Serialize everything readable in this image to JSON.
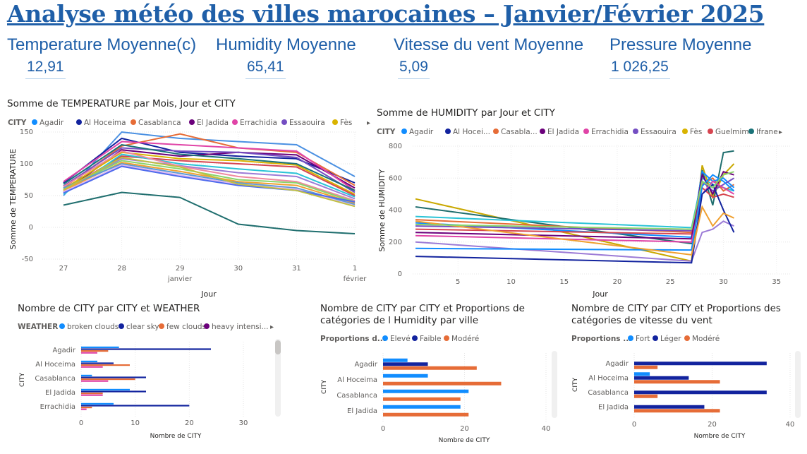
{
  "title": "Analyse météo des villes marocaines – Janvier/Février 2025",
  "kpis": [
    {
      "label": "Temperature Moyenne(c)",
      "value": "12,91"
    },
    {
      "label": "Humidity Moyenne",
      "value": "65,41"
    },
    {
      "label": "Vitesse du vent Moyenne",
      "value": "5,09"
    },
    {
      "label": "Pressure Moyenne",
      "value": "1 026,25"
    }
  ],
  "temp_chart": {
    "title": "Somme de TEMPERATURE par Mois, Jour et CITY",
    "legend_title": "CITY",
    "legend_items": [
      "Agadir",
      "Al Hoceima",
      "Casablanca",
      "El Jadida",
      "Errachidia",
      "Essaouira",
      "Fès"
    ],
    "ylabel": "Somme de TEMPERATURE",
    "xlabel": "Jour",
    "y_ticks": [
      "150",
      "100",
      "50",
      "0",
      "-50"
    ],
    "x_ticks": [
      "27",
      "28",
      "29",
      "30",
      "31",
      "1"
    ],
    "month_labels": [
      "janvier",
      "février"
    ]
  },
  "hum_chart": {
    "title": "Somme de HUMIDITY par Jour et CITY",
    "legend_title": "CITY",
    "legend_items": [
      "Agadir",
      "Al Hocei...",
      "Casabla...",
      "El Jadida",
      "Errachidia",
      "Essaouira",
      "Fès",
      "Guelmim",
      "Ifrane"
    ],
    "ylabel": "Somme de HUMIDITY",
    "xlabel": "Jour",
    "y_ticks": [
      "800",
      "600",
      "400",
      "200",
      "0"
    ],
    "x_ticks": [
      "5",
      "10",
      "15",
      "20",
      "25",
      "30",
      "35"
    ]
  },
  "weather_chart": {
    "title": "Nombre de CITY par CITY et WEATHER",
    "legend_title": "WEATHER",
    "legend_items": [
      "broken clouds",
      "clear sky",
      "few clouds",
      "heavy intensi..."
    ],
    "ylabel": "CITY",
    "xlabel": "Nombre de CITY",
    "x_ticks": [
      "0",
      "10",
      "20",
      "30"
    ],
    "categories": [
      "Agadir",
      "Al Hoceima",
      "Casablanca",
      "El Jadida",
      "Errachidia"
    ]
  },
  "humprop_chart": {
    "title_line1": "Nombre de CITY par CITY et Proportions de",
    "title_line2": "catégories de l Humidity par ville",
    "legend_title": "Proportions d...",
    "legend_items": [
      "Elevé",
      "Faible",
      "Modéré"
    ],
    "ylabel": "CITY",
    "xlabel": "Nombre de CITY",
    "x_ticks": [
      "0",
      "20",
      "40"
    ],
    "categories": [
      "Agadir",
      "Al Hoceima",
      "Casablanca",
      "El Jadida"
    ]
  },
  "windprop_chart": {
    "title_line1": "Nombre de CITY par CITY et Proportions des",
    "title_line2": "catégories de vitesse du vent",
    "legend_title": "Proportions ...",
    "legend_items": [
      "Fort",
      "Léger",
      "Modéré"
    ],
    "ylabel": "CITY",
    "xlabel": "Nombre de CITY",
    "x_ticks": [
      "0",
      "20",
      "40"
    ],
    "categories": [
      "Agadir",
      "Al Hoceima",
      "Casablanca",
      "El Jadida"
    ]
  },
  "colors": {
    "title": "#1f5fa8",
    "palette": [
      "#118dff",
      "#12239e",
      "#e66c37",
      "#6b007b",
      "#e044a7",
      "#744ec2",
      "#d9b300",
      "#d64550",
      "#197278"
    ]
  },
  "chart_data": [
    {
      "type": "line",
      "title": "Somme de TEMPERATURE par Mois, Jour et CITY",
      "x": [
        "27",
        "28",
        "29",
        "30",
        "31",
        "1"
      ],
      "xlabel": "Jour",
      "ylabel": "Somme de TEMPERATURE",
      "ylim": [
        -50,
        150
      ],
      "series": [
        {
          "values": [
            50,
            150,
            140,
            135,
            130,
            80
          ]
        },
        {
          "values": [
            70,
            140,
            118,
            112,
            108,
            70
          ]
        },
        {
          "values": [
            62,
            128,
            147,
            125,
            118,
            66
          ]
        },
        {
          "values": [
            55,
            122,
            112,
            118,
            114,
            62
          ]
        },
        {
          "values": [
            72,
            135,
            130,
            125,
            120,
            58
          ]
        },
        {
          "values": [
            65,
            125,
            120,
            118,
            110,
            55
          ]
        },
        {
          "values": [
            60,
            118,
            108,
            105,
            98,
            52
          ]
        },
        {
          "values": [
            58,
            112,
            105,
            100,
            95,
            50
          ]
        },
        {
          "values": [
            68,
            130,
            115,
            108,
            100,
            58
          ]
        },
        {
          "values": [
            52,
            115,
            100,
            92,
            85,
            48
          ]
        },
        {
          "values": [
            56,
            108,
            97,
            86,
            80,
            45
          ]
        },
        {
          "values": [
            64,
            120,
            96,
            80,
            72,
            42
          ]
        },
        {
          "values": [
            60,
            105,
            92,
            75,
            70,
            40
          ]
        },
        {
          "values": [
            58,
            102,
            88,
            72,
            66,
            38
          ]
        },
        {
          "values": [
            62,
            100,
            85,
            70,
            62,
            36
          ]
        },
        {
          "values": [
            56,
            98,
            82,
            68,
            60,
            34
          ]
        },
        {
          "values": [
            54,
            96,
            80,
            66,
            58,
            40
          ]
        },
        {
          "values": [
            59,
            110,
            95,
            68,
            58,
            33
          ]
        },
        {
          "values": [
            35,
            55,
            47,
            5,
            -5,
            -10
          ]
        }
      ]
    },
    {
      "type": "line",
      "title": "Somme de HUMIDITY par Jour et CITY",
      "xlabel": "Jour",
      "ylabel": "Somme de HUMIDITY",
      "xlim": [
        0,
        36
      ],
      "ylim": [
        0,
        800
      ],
      "series": [
        {
          "x": [
            1,
            27,
            28,
            29,
            30,
            31
          ],
          "values": [
            470,
            80,
            680,
            480,
            620,
            690
          ]
        },
        {
          "x": [
            1,
            27,
            28,
            29,
            30,
            31
          ],
          "values": [
            420,
            190,
            650,
            430,
            760,
            770
          ]
        },
        {
          "x": [
            1,
            27,
            28,
            29,
            30,
            31
          ],
          "values": [
            360,
            290,
            600,
            560,
            540,
            520
          ]
        },
        {
          "x": [
            1,
            27,
            28,
            29,
            30,
            31
          ],
          "values": [
            340,
            260,
            560,
            600,
            520,
            560
          ]
        },
        {
          "x": [
            1,
            27,
            28,
            29,
            30,
            31
          ],
          "values": [
            320,
            230,
            640,
            580,
            600,
            540
          ]
        },
        {
          "x": [
            1,
            27,
            28,
            29,
            30,
            31
          ],
          "values": [
            300,
            270,
            580,
            520,
            560,
            600
          ]
        },
        {
          "x": [
            1,
            27,
            28,
            29,
            30,
            31
          ],
          "values": [
            280,
            250,
            540,
            480,
            500,
            480
          ]
        },
        {
          "x": [
            1,
            27,
            28,
            29,
            30,
            31
          ],
          "values": [
            260,
            220,
            620,
            500,
            640,
            620
          ]
        },
        {
          "x": [
            1,
            27,
            28,
            29,
            30,
            31
          ],
          "values": [
            240,
            200,
            500,
            580,
            540,
            500
          ]
        },
        {
          "x": [
            1,
            27,
            28,
            29,
            30,
            31
          ],
          "values": [
            200,
            80,
            260,
            280,
            330,
            300
          ]
        },
        {
          "x": [
            1,
            27,
            28,
            29,
            30,
            31
          ],
          "values": [
            160,
            150,
            550,
            620,
            580,
            520
          ]
        },
        {
          "x": [
            1,
            27,
            28,
            29,
            30,
            31
          ],
          "values": [
            110,
            70,
            500,
            560,
            400,
            260
          ]
        },
        {
          "x": [
            1,
            27,
            28,
            29,
            30,
            31
          ],
          "values": [
            330,
            120,
            420,
            300,
            380,
            350
          ]
        },
        {
          "x": [
            1,
            27,
            28,
            29,
            30,
            31
          ],
          "values": [
            310,
            280,
            580,
            540,
            620,
            640
          ]
        }
      ]
    },
    {
      "type": "bar",
      "title": "Nombre de CITY par CITY et WEATHER",
      "categories": [
        "Agadir",
        "Al Hoceima",
        "Casablanca",
        "El Jadida",
        "Errachidia"
      ],
      "xlabel": "Nombre de CITY",
      "ylabel": "CITY",
      "xlim": [
        0,
        30
      ],
      "series": [
        {
          "name": "broken clouds",
          "values": [
            7,
            3,
            2,
            9,
            6
          ]
        },
        {
          "name": "clear sky",
          "values": [
            24,
            6,
            12,
            12,
            20
          ]
        },
        {
          "name": "few clouds",
          "values": [
            5,
            9,
            10,
            4,
            2
          ]
        },
        {
          "name": "heavy intensi...",
          "values": [
            3,
            4,
            5,
            4,
            1
          ]
        }
      ]
    },
    {
      "type": "bar",
      "title": "Nombre de CITY par CITY et Proportions de catégories de l Humidity par ville",
      "categories": [
        "Agadir",
        "Al Hoceima",
        "Casablanca",
        "El Jadida"
      ],
      "xlabel": "Nombre de CITY",
      "ylabel": "CITY",
      "xlim": [
        0,
        40
      ],
      "series": [
        {
          "name": "Elevé",
          "values": [
            6,
            11,
            21,
            19
          ]
        },
        {
          "name": "Faible",
          "values": [
            11,
            0,
            0,
            0
          ]
        },
        {
          "name": "Modéré",
          "values": [
            23,
            29,
            19,
            21
          ]
        }
      ]
    },
    {
      "type": "bar",
      "title": "Nombre de CITY par CITY et Proportions des catégories de vitesse du vent",
      "categories": [
        "Agadir",
        "Al Hoceima",
        "Casablanca",
        "El Jadida"
      ],
      "xlabel": "Nombre de CITY",
      "ylabel": "CITY",
      "xlim": [
        0,
        40
      ],
      "series": [
        {
          "name": "Fort",
          "values": [
            0,
            4,
            0,
            0
          ]
        },
        {
          "name": "Léger",
          "values": [
            34,
            14,
            34,
            18
          ]
        },
        {
          "name": "Modéré",
          "values": [
            6,
            22,
            6,
            22
          ]
        }
      ]
    }
  ]
}
